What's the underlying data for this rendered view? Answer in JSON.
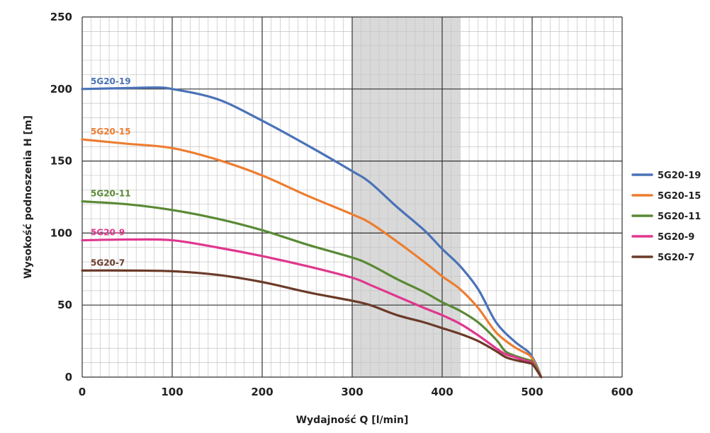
{
  "chart_data": {
    "type": "line",
    "xlabel": "Wydajność Q [l/min]",
    "ylabel": "Wysokość podnoszenia H [m]",
    "xlim": [
      0,
      600
    ],
    "ylim": [
      0,
      250
    ],
    "x_ticks": [
      "0",
      "100",
      "200",
      "300",
      "400",
      "500",
      "600"
    ],
    "y_ticks": [
      "0",
      "50",
      "100",
      "150",
      "200",
      "250"
    ],
    "grid": true,
    "legend_position": "right",
    "shaded_region": {
      "x_start": 300,
      "x_end": 420,
      "color": "#d9d9d9"
    },
    "series": [
      {
        "name": "5G20-19",
        "color": "#4a72b8",
        "points": [
          [
            0,
            200
          ],
          [
            40,
            200.5
          ],
          [
            80,
            201
          ],
          [
            100,
            200
          ],
          [
            150,
            193
          ],
          [
            200,
            178
          ],
          [
            250,
            161
          ],
          [
            300,
            143
          ],
          [
            320,
            135
          ],
          [
            350,
            118
          ],
          [
            380,
            102
          ],
          [
            400,
            89
          ],
          [
            420,
            77
          ],
          [
            440,
            61
          ],
          [
            460,
            38
          ],
          [
            480,
            25
          ],
          [
            495,
            18
          ],
          [
            500,
            14
          ],
          [
            505,
            8
          ],
          [
            510,
            0
          ]
        ]
      },
      {
        "name": "5G20-15",
        "color": "#ed7d31",
        "points": [
          [
            0,
            165
          ],
          [
            50,
            162
          ],
          [
            100,
            159
          ],
          [
            150,
            151
          ],
          [
            200,
            140
          ],
          [
            250,
            126
          ],
          [
            300,
            113
          ],
          [
            320,
            107
          ],
          [
            350,
            94
          ],
          [
            380,
            80
          ],
          [
            400,
            70
          ],
          [
            420,
            61
          ],
          [
            440,
            48
          ],
          [
            460,
            31
          ],
          [
            480,
            21
          ],
          [
            495,
            16
          ],
          [
            500,
            13
          ],
          [
            505,
            7
          ],
          [
            510,
            0
          ]
        ]
      },
      {
        "name": "5G20-11",
        "color": "#5a8a35",
        "points": [
          [
            0,
            122
          ],
          [
            50,
            120
          ],
          [
            100,
            116
          ],
          [
            150,
            110
          ],
          [
            200,
            102
          ],
          [
            250,
            92
          ],
          [
            300,
            83
          ],
          [
            320,
            78
          ],
          [
            350,
            68
          ],
          [
            380,
            59
          ],
          [
            400,
            52
          ],
          [
            420,
            46
          ],
          [
            440,
            38
          ],
          [
            460,
            26
          ],
          [
            470,
            18
          ],
          [
            480,
            15
          ],
          [
            495,
            12
          ],
          [
            500,
            11
          ],
          [
            505,
            6
          ],
          [
            510,
            0
          ]
        ]
      },
      {
        "name": "5G20-9",
        "color": "#e0378e",
        "points": [
          [
            0,
            95
          ],
          [
            50,
            95.5
          ],
          [
            100,
            95
          ],
          [
            150,
            90
          ],
          [
            200,
            84
          ],
          [
            250,
            77
          ],
          [
            300,
            69
          ],
          [
            320,
            64
          ],
          [
            350,
            56
          ],
          [
            380,
            48
          ],
          [
            400,
            43
          ],
          [
            420,
            37
          ],
          [
            440,
            29
          ],
          [
            460,
            20
          ],
          [
            470,
            16
          ],
          [
            480,
            14
          ],
          [
            495,
            11
          ],
          [
            500,
            10
          ],
          [
            505,
            5
          ],
          [
            510,
            0
          ]
        ]
      },
      {
        "name": "5G20-7",
        "color": "#6b3a28",
        "points": [
          [
            0,
            74
          ],
          [
            50,
            74
          ],
          [
            100,
            73.5
          ],
          [
            150,
            71
          ],
          [
            200,
            66
          ],
          [
            250,
            59
          ],
          [
            300,
            53
          ],
          [
            320,
            50
          ],
          [
            350,
            43
          ],
          [
            380,
            38
          ],
          [
            400,
            34
          ],
          [
            420,
            30
          ],
          [
            440,
            25
          ],
          [
            460,
            18
          ],
          [
            470,
            14
          ],
          [
            480,
            12
          ],
          [
            495,
            10
          ],
          [
            500,
            9
          ],
          [
            505,
            5
          ],
          [
            510,
            0
          ]
        ]
      }
    ]
  }
}
